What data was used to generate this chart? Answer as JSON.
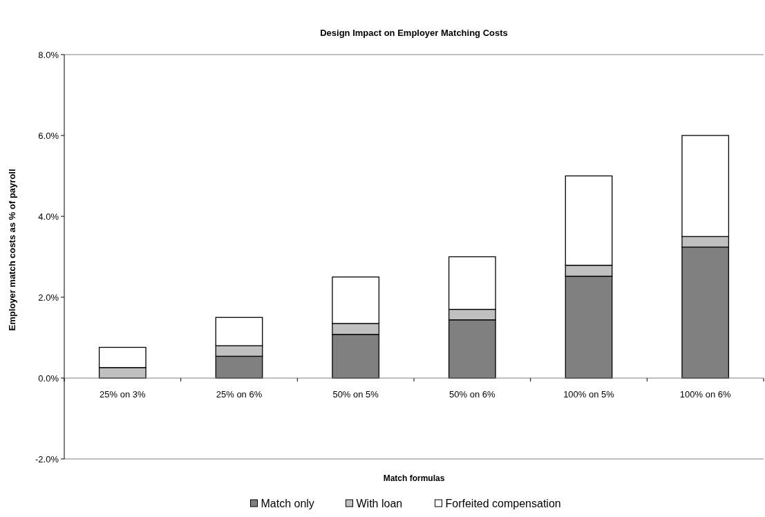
{
  "chart_data": {
    "type": "bar",
    "title": "Design Impact on Employer Matching Costs",
    "xlabel": "Match formulas",
    "ylabel": "Employer match costs as % of payroll",
    "categories": [
      "25% on 3%",
      "25% on 6%",
      "50% on 5%",
      "50% on 6%",
      "100% on 5%",
      "100% on 6%"
    ],
    "series": [
      {
        "name": "Match only",
        "color": "#808080",
        "values": [
          null,
          0.54,
          1.08,
          1.44,
          2.52,
          3.24
        ]
      },
      {
        "name": "With loan",
        "color": "#c0c0c0",
        "values": [
          0.26,
          0.26,
          0.27,
          0.26,
          0.27,
          0.26
        ]
      },
      {
        "name": "Forfeited compensation",
        "color": "#ffffff",
        "values": [
          0.5,
          0.7,
          1.15,
          1.3,
          2.21,
          2.5
        ]
      }
    ],
    "stacked": true,
    "ylim": [
      -2,
      8
    ],
    "yticks": [
      {
        "value": -2,
        "label": "-2.0%"
      },
      {
        "value": 0,
        "label": "0.0%"
      },
      {
        "value": 2,
        "label": "2.0%"
      },
      {
        "value": 4,
        "label": "4.0%"
      },
      {
        "value": 6,
        "label": "6.0%"
      },
      {
        "value": 8,
        "label": "8.0%"
      }
    ],
    "legend": "bottom"
  }
}
